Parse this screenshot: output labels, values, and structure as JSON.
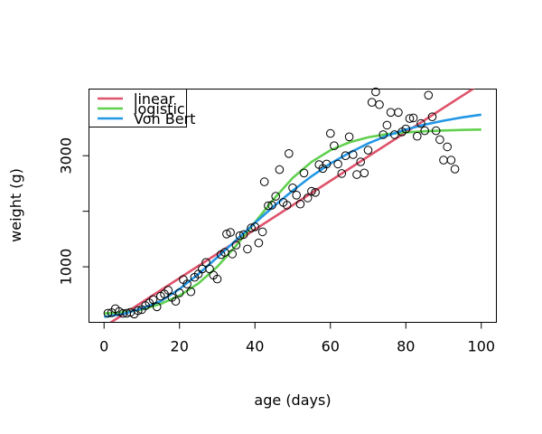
{
  "chart_data": {
    "type": "scatter",
    "title": "",
    "xlabel": "age (days)",
    "ylabel": "weight (g)",
    "xlim": [
      -4,
      104
    ],
    "ylim": [
      0,
      4200
    ],
    "xticks": [
      0,
      20,
      40,
      60,
      80,
      100
    ],
    "yticks": [
      1000,
      3000
    ],
    "yticks_minor": [
      2000
    ],
    "legend_position": "top-left",
    "points": [
      {
        "x": 1,
        "y": 165
      },
      {
        "x": 2,
        "y": 175
      },
      {
        "x": 3,
        "y": 245
      },
      {
        "x": 4,
        "y": 195
      },
      {
        "x": 5,
        "y": 160
      },
      {
        "x": 6,
        "y": 165
      },
      {
        "x": 7,
        "y": 180
      },
      {
        "x": 8,
        "y": 150
      },
      {
        "x": 9,
        "y": 210
      },
      {
        "x": 10,
        "y": 230
      },
      {
        "x": 11,
        "y": 300
      },
      {
        "x": 12,
        "y": 350
      },
      {
        "x": 13,
        "y": 410
      },
      {
        "x": 14,
        "y": 280
      },
      {
        "x": 15,
        "y": 470
      },
      {
        "x": 16,
        "y": 510
      },
      {
        "x": 17,
        "y": 580
      },
      {
        "x": 18,
        "y": 450
      },
      {
        "x": 19,
        "y": 380
      },
      {
        "x": 20,
        "y": 530
      },
      {
        "x": 21,
        "y": 770
      },
      {
        "x": 22,
        "y": 690
      },
      {
        "x": 23,
        "y": 550
      },
      {
        "x": 24,
        "y": 810
      },
      {
        "x": 25,
        "y": 870
      },
      {
        "x": 26,
        "y": 960
      },
      {
        "x": 27,
        "y": 1080
      },
      {
        "x": 28,
        "y": 960
      },
      {
        "x": 29,
        "y": 850
      },
      {
        "x": 30,
        "y": 780
      },
      {
        "x": 31,
        "y": 1220
      },
      {
        "x": 32,
        "y": 1260
      },
      {
        "x": 32.5,
        "y": 1590
      },
      {
        "x": 33.5,
        "y": 1620
      },
      {
        "x": 34,
        "y": 1230
      },
      {
        "x": 35,
        "y": 1390
      },
      {
        "x": 36,
        "y": 1560
      },
      {
        "x": 37,
        "y": 1580
      },
      {
        "x": 38,
        "y": 1320
      },
      {
        "x": 39,
        "y": 1700
      },
      {
        "x": 40,
        "y": 1720
      },
      {
        "x": 41,
        "y": 1430
      },
      {
        "x": 42,
        "y": 1630
      },
      {
        "x": 42.5,
        "y": 2530
      },
      {
        "x": 43.5,
        "y": 2100
      },
      {
        "x": 44.5,
        "y": 2110
      },
      {
        "x": 45.5,
        "y": 2270
      },
      {
        "x": 46.5,
        "y": 2750
      },
      {
        "x": 47.5,
        "y": 2160
      },
      {
        "x": 48.5,
        "y": 2110
      },
      {
        "x": 49,
        "y": 3040
      },
      {
        "x": 50,
        "y": 2420
      },
      {
        "x": 51,
        "y": 2290
      },
      {
        "x": 52,
        "y": 2130
      },
      {
        "x": 53,
        "y": 2690
      },
      {
        "x": 54,
        "y": 2240
      },
      {
        "x": 55,
        "y": 2360
      },
      {
        "x": 56,
        "y": 2340
      },
      {
        "x": 57,
        "y": 2840
      },
      {
        "x": 58,
        "y": 2770
      },
      {
        "x": 59,
        "y": 2850
      },
      {
        "x": 60,
        "y": 3400
      },
      {
        "x": 61,
        "y": 3180
      },
      {
        "x": 62,
        "y": 2850
      },
      {
        "x": 63,
        "y": 2680
      },
      {
        "x": 64,
        "y": 3000
      },
      {
        "x": 65,
        "y": 3340
      },
      {
        "x": 66,
        "y": 3020
      },
      {
        "x": 67,
        "y": 2660
      },
      {
        "x": 68,
        "y": 2890
      },
      {
        "x": 69,
        "y": 2690
      },
      {
        "x": 70,
        "y": 3100
      },
      {
        "x": 71,
        "y": 3960
      },
      {
        "x": 72,
        "y": 4150
      },
      {
        "x": 73,
        "y": 3920
      },
      {
        "x": 74,
        "y": 3380
      },
      {
        "x": 75,
        "y": 3550
      },
      {
        "x": 76,
        "y": 3780
      },
      {
        "x": 77,
        "y": 3380
      },
      {
        "x": 78,
        "y": 3780
      },
      {
        "x": 79,
        "y": 3430
      },
      {
        "x": 80,
        "y": 3480
      },
      {
        "x": 81,
        "y": 3670
      },
      {
        "x": 82,
        "y": 3680
      },
      {
        "x": 83,
        "y": 3350
      },
      {
        "x": 84,
        "y": 3580
      },
      {
        "x": 85,
        "y": 3450
      },
      {
        "x": 86,
        "y": 4090
      },
      {
        "x": 87,
        "y": 3700
      },
      {
        "x": 88,
        "y": 3450
      },
      {
        "x": 89,
        "y": 3290
      },
      {
        "x": 90,
        "y": 2920
      },
      {
        "x": 91,
        "y": 3160
      },
      {
        "x": 92,
        "y": 2920
      },
      {
        "x": 93,
        "y": 2760
      }
    ],
    "series": [
      {
        "name": "linear",
        "color": "#DF536B",
        "x": [
          0,
          100
        ],
        "y": [
          -80,
          4300
        ]
      },
      {
        "name": "logistic",
        "color": "#61D04F",
        "x": [
          0,
          5,
          10,
          15,
          20,
          25,
          30,
          35,
          40,
          45,
          50,
          55,
          60,
          65,
          70,
          75,
          80,
          85,
          90,
          95,
          100
        ],
        "y": [
          160,
          180,
          230,
          330,
          480,
          700,
          1000,
          1380,
          1800,
          2220,
          2600,
          2890,
          3100,
          3240,
          3330,
          3390,
          3420,
          3440,
          3455,
          3465,
          3470
        ]
      },
      {
        "name": "Von Bert",
        "color": "#2297E6",
        "x": [
          0,
          5,
          10,
          15,
          20,
          25,
          30,
          35,
          40,
          45,
          50,
          55,
          60,
          65,
          70,
          75,
          80,
          85,
          90,
          95,
          100
        ],
        "y": [
          100,
          150,
          250,
          380,
          600,
          870,
          1170,
          1480,
          1790,
          2090,
          2370,
          2630,
          2860,
          3050,
          3220,
          3360,
          3470,
          3560,
          3630,
          3690,
          3740
        ]
      }
    ]
  }
}
